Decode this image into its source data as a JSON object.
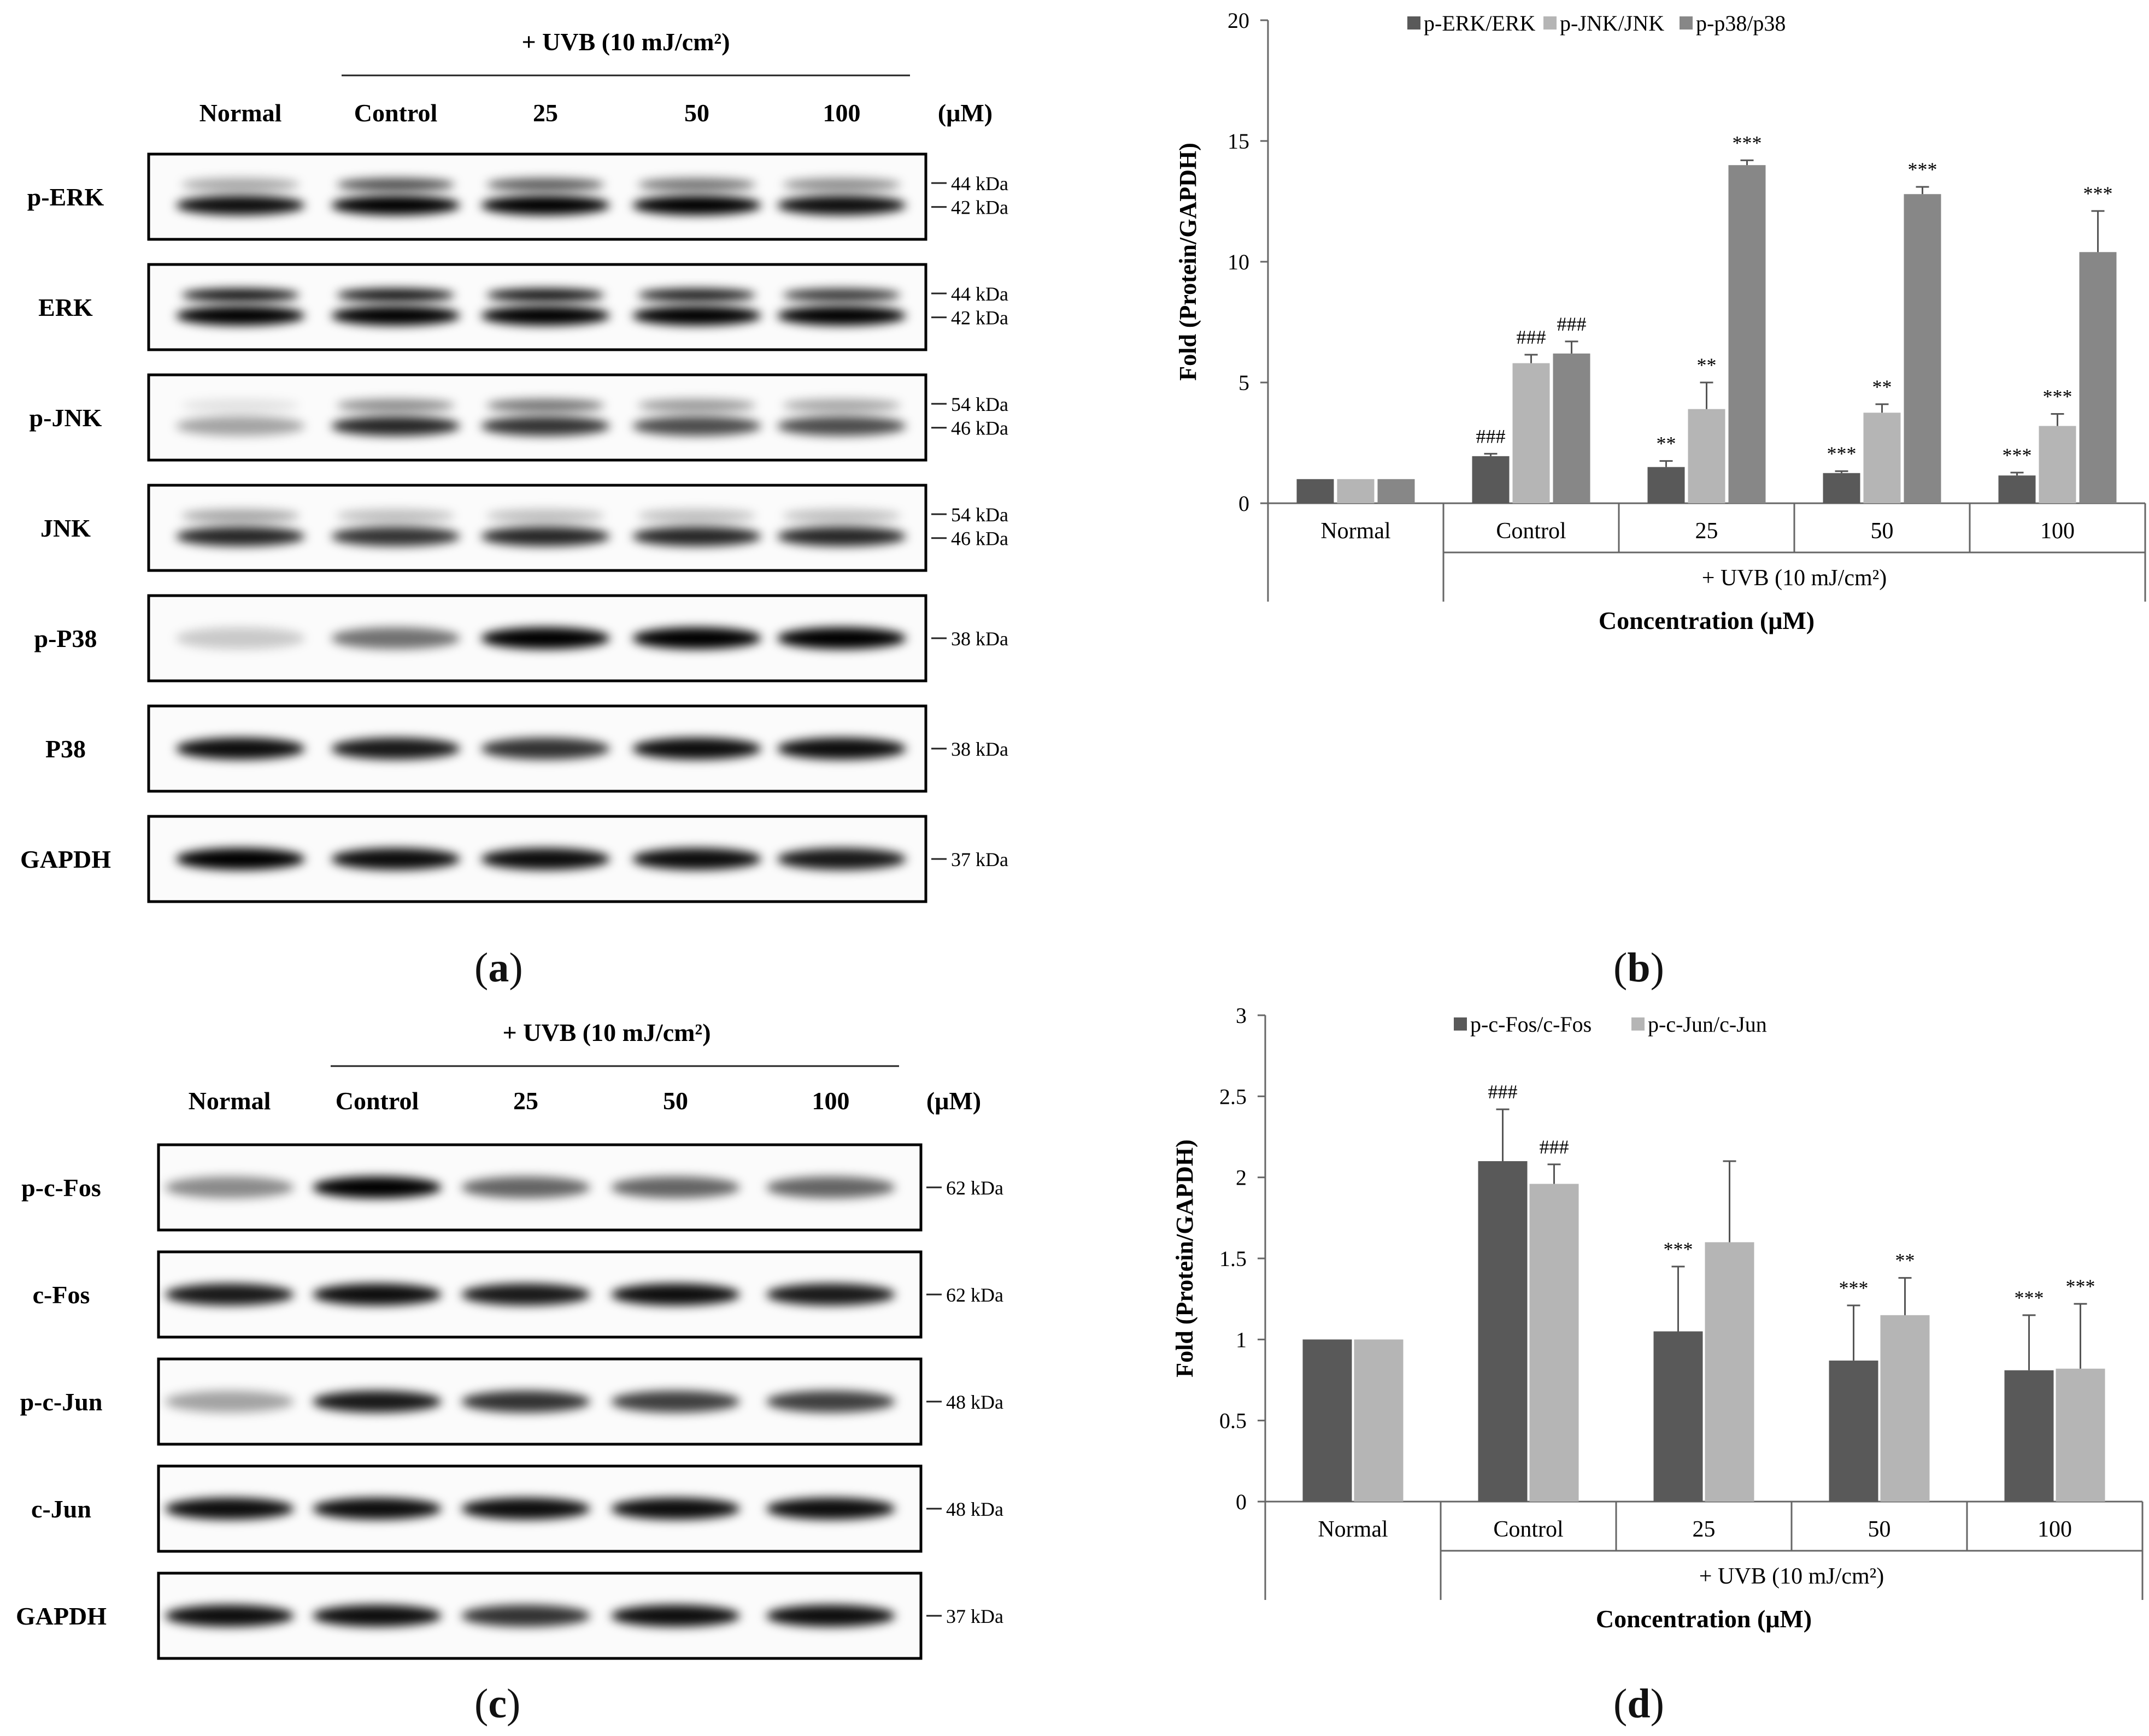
{
  "panels": {
    "a": {
      "letter": "a",
      "uvb_header": "+ UVB (10 mJ/cm²)",
      "lanes": [
        "Normal",
        "Control",
        "25",
        "50",
        "100"
      ],
      "unit": "(μM)",
      "blots": [
        {
          "label": "p-ERK",
          "kda": [
            "44 kDa",
            "42 kDa"
          ],
          "intensity": [
            0.95,
            1.0,
            1.0,
            1.0,
            0.95
          ],
          "upper": [
            0.35,
            0.7,
            0.65,
            0.55,
            0.45
          ]
        },
        {
          "label": "ERK",
          "kda": [
            "44 kDa",
            "42 kDa"
          ],
          "intensity": [
            1.0,
            1.0,
            1.0,
            1.0,
            1.0
          ],
          "upper": [
            0.95,
            0.95,
            0.95,
            0.9,
            0.8
          ]
        },
        {
          "label": "p-JNK",
          "kda": [
            "54 kDa",
            "46 kDa"
          ],
          "intensity": [
            0.35,
            0.85,
            0.8,
            0.7,
            0.7
          ],
          "upper": [
            0.1,
            0.45,
            0.55,
            0.4,
            0.35
          ]
        },
        {
          "label": "JNK",
          "kda": [
            "54 kDa",
            "46 kDa"
          ],
          "intensity": [
            0.85,
            0.8,
            0.85,
            0.85,
            0.85
          ],
          "upper": [
            0.35,
            0.25,
            0.25,
            0.25,
            0.25
          ]
        },
        {
          "label": "p-P38",
          "kda": [
            "38 kDa"
          ],
          "intensity": [
            0.2,
            0.55,
            1.0,
            1.0,
            1.0
          ],
          "upper": []
        },
        {
          "label": "P38",
          "kda": [
            "38 kDa"
          ],
          "intensity": [
            0.95,
            0.9,
            0.8,
            0.95,
            0.95
          ],
          "upper": []
        },
        {
          "label": "GAPDH",
          "kda": [
            "37 kDa"
          ],
          "intensity": [
            1.0,
            0.95,
            0.95,
            0.95,
            0.9
          ],
          "upper": []
        }
      ]
    },
    "b": {
      "letter": "b",
      "chart_data": {
        "type": "bar",
        "categories": [
          "Normal",
          "Control",
          "25",
          "50",
          "100"
        ],
        "group_label": "+ UVB (10 mJ/cm²)",
        "xlabel": "Concentration (μM)",
        "ylabel": "Fold (Protein/GAPDH)",
        "ylim": [
          0,
          20
        ],
        "yticks": [
          0,
          5,
          10,
          15,
          20
        ],
        "legend_position": "top",
        "series": [
          {
            "name": "p-ERK/ERK",
            "color": "#595959",
            "values": [
              1.0,
              1.95,
              1.5,
              1.25,
              1.15
            ],
            "errors": [
              0.0,
              0.1,
              0.25,
              0.08,
              0.12
            ],
            "marks": [
              "",
              "###",
              "**",
              "***",
              "***"
            ]
          },
          {
            "name": "p-JNK/JNK",
            "color": "#b5b5b5",
            "values": [
              1.0,
              5.8,
              3.9,
              3.75,
              3.2
            ],
            "errors": [
              0.0,
              0.35,
              1.1,
              0.35,
              0.5
            ],
            "marks": [
              "",
              "###",
              "**",
              "**",
              "***"
            ]
          },
          {
            "name": "p-p38/p38",
            "color": "#878787",
            "values": [
              1.0,
              6.2,
              14.0,
              12.8,
              10.4
            ],
            "errors": [
              0.0,
              0.5,
              0.2,
              0.3,
              1.7
            ],
            "marks": [
              "",
              "###",
              "***",
              "***",
              "***"
            ]
          }
        ]
      }
    },
    "c": {
      "letter": "c",
      "uvb_header": "+ UVB (10 mJ/cm²)",
      "lanes": [
        "Normal",
        "Control",
        "25",
        "50",
        "100"
      ],
      "unit": "(μM)",
      "blots": [
        {
          "label": "p-c-Fos",
          "kda": [
            "62 kDa"
          ],
          "intensity": [
            0.45,
            1.0,
            0.6,
            0.6,
            0.6
          ],
          "upper": []
        },
        {
          "label": "c-Fos",
          "kda": [
            "62 kDa"
          ],
          "intensity": [
            0.9,
            0.95,
            0.9,
            0.95,
            0.9
          ],
          "upper": []
        },
        {
          "label": "p-c-Jun",
          "kda": [
            "48 kDa"
          ],
          "intensity": [
            0.35,
            0.9,
            0.8,
            0.75,
            0.75
          ],
          "upper": []
        },
        {
          "label": "c-Jun",
          "kda": [
            "48 kDa"
          ],
          "intensity": [
            0.95,
            0.95,
            0.95,
            0.95,
            0.95
          ],
          "upper": []
        },
        {
          "label": "GAPDH",
          "kda": [
            "37 kDa"
          ],
          "intensity": [
            0.95,
            0.95,
            0.8,
            0.95,
            0.95
          ],
          "upper": []
        }
      ]
    },
    "d": {
      "letter": "d",
      "chart_data": {
        "type": "bar",
        "categories": [
          "Normal",
          "Control",
          "25",
          "50",
          "100"
        ],
        "group_label": "+ UVB (10 mJ/cm²)",
        "xlabel": "Concentration (μM)",
        "ylabel": "Fold (Protein/GAPDH)",
        "ylim": [
          0,
          3
        ],
        "yticks": [
          0,
          0.5,
          1,
          1.5,
          2,
          2.5,
          3
        ],
        "legend_position": "top",
        "series": [
          {
            "name": "p-c-Fos/c-Fos",
            "color": "#595959",
            "values": [
              1.0,
              2.1,
              1.05,
              0.87,
              0.81
            ],
            "errors": [
              0.0,
              0.32,
              0.4,
              0.34,
              0.34
            ],
            "marks": [
              "",
              "###",
              "***",
              "***",
              "***"
            ]
          },
          {
            "name": "p-c-Jun/c-Jun",
            "color": "#b5b5b5",
            "values": [
              1.0,
              1.96,
              1.6,
              1.15,
              0.82
            ],
            "errors": [
              0.0,
              0.12,
              0.5,
              0.23,
              0.4
            ],
            "marks": [
              "",
              "###",
              "",
              "**",
              "***"
            ]
          }
        ]
      }
    }
  }
}
